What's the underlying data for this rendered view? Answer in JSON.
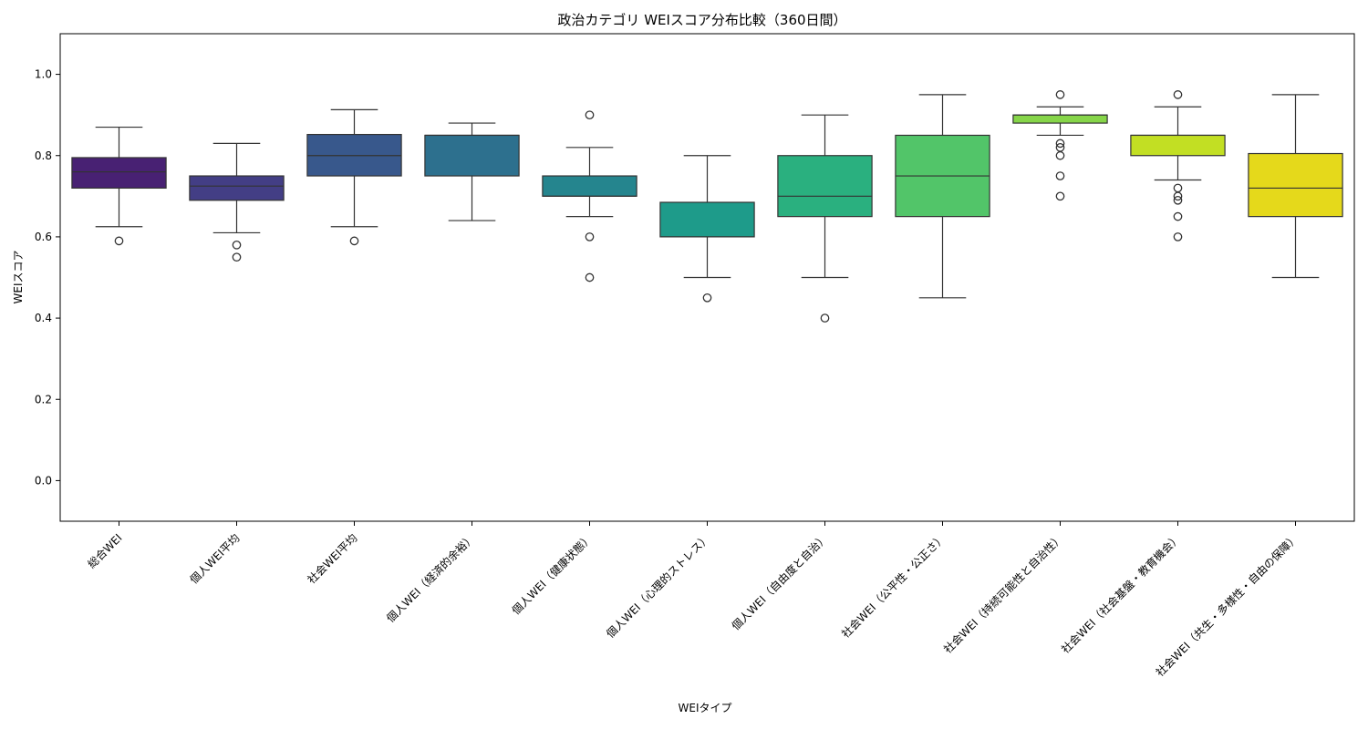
{
  "chart_data": {
    "type": "box",
    "title": "政治カテゴリ WEIスコア分布比較（360日間）",
    "xlabel": "WEIタイプ",
    "ylabel": "WEIスコア",
    "ylim": [
      -0.1,
      1.1
    ],
    "yticks": [
      "0.0",
      "0.2",
      "0.4",
      "0.6",
      "0.8",
      "1.0"
    ],
    "grid": false,
    "categories": [
      "総合WEI",
      "個人WEI平均",
      "社会WEI平均",
      "個人WEI（経済的余裕）",
      "個人WEI（健康状態）",
      "個人WEI（心理的ストレス）",
      "個人WEI（自由度と自治）",
      "社会WEI（公平性・公正さ）",
      "社会WEI（持続可能性と自治性）",
      "社会WEI（社会基盤・教育機会）",
      "社会WEI（共生・多様性・自由の保障）"
    ],
    "boxes": [
      {
        "whisker_low": 0.625,
        "q1": 0.72,
        "median": 0.76,
        "q3": 0.795,
        "whisker_high": 0.87,
        "outliers": [
          0.59
        ],
        "color": "#482173"
      },
      {
        "whisker_low": 0.61,
        "q1": 0.69,
        "median": 0.725,
        "q3": 0.75,
        "whisker_high": 0.83,
        "outliers": [
          0.58,
          0.55
        ],
        "color": "#433e85"
      },
      {
        "whisker_low": 0.625,
        "q1": 0.75,
        "median": 0.8,
        "q3": 0.852,
        "whisker_high": 0.913,
        "outliers": [
          0.59
        ],
        "color": "#38588c"
      },
      {
        "whisker_low": 0.64,
        "q1": 0.75,
        "median": 0.85,
        "q3": 0.85,
        "whisker_high": 0.88,
        "outliers": [],
        "color": "#2d708e"
      },
      {
        "whisker_low": 0.65,
        "q1": 0.7,
        "median": 0.7,
        "q3": 0.75,
        "whisker_high": 0.82,
        "outliers": [
          0.9,
          0.6,
          0.5
        ],
        "color": "#25858e"
      },
      {
        "whisker_low": 0.5,
        "q1": 0.6,
        "median": 0.6,
        "q3": 0.685,
        "whisker_high": 0.8,
        "outliers": [
          0.45
        ],
        "color": "#1e9b8a"
      },
      {
        "whisker_low": 0.5,
        "q1": 0.65,
        "median": 0.7,
        "q3": 0.8,
        "whisker_high": 0.9,
        "outliers": [
          0.4
        ],
        "color": "#2ab07f"
      },
      {
        "whisker_low": 0.45,
        "q1": 0.65,
        "median": 0.75,
        "q3": 0.85,
        "whisker_high": 0.95,
        "outliers": [],
        "color": "#52c569"
      },
      {
        "whisker_low": 0.85,
        "q1": 0.88,
        "median": 0.9,
        "q3": 0.9,
        "whisker_high": 0.92,
        "outliers": [
          0.95,
          0.83,
          0.82,
          0.8,
          0.75,
          0.7
        ],
        "color": "#86d549"
      },
      {
        "whisker_low": 0.74,
        "q1": 0.8,
        "median": 0.85,
        "q3": 0.85,
        "whisker_high": 0.92,
        "outliers": [
          0.95,
          0.72,
          0.7,
          0.69,
          0.65,
          0.6
        ],
        "color": "#c2df23"
      },
      {
        "whisker_low": 0.5,
        "q1": 0.65,
        "median": 0.72,
        "q3": 0.805,
        "whisker_high": 0.95,
        "outliers": [],
        "color": "#e5d91b"
      }
    ]
  }
}
